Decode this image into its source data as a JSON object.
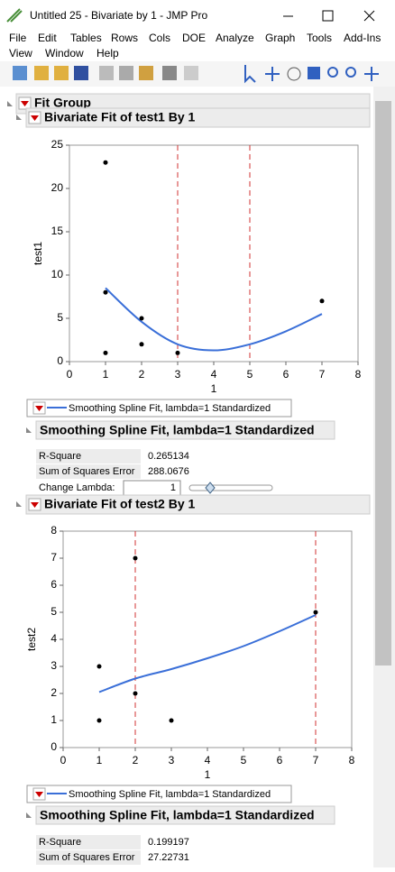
{
  "window": {
    "title": "Untitled 25 - Bivariate by 1 - JMP Pro"
  },
  "menu": {
    "row1": [
      "File",
      "Edit",
      "Tables",
      "Rows",
      "Cols",
      "DOE",
      "Analyze",
      "Graph",
      "Tools",
      "Add-Ins"
    ],
    "row2": [
      "View",
      "Window",
      "Help"
    ]
  },
  "fit_group": {
    "title": "Fit Group"
  },
  "reports": [
    {
      "title": "Bivariate Fit of test1 By 1",
      "chart": {
        "type": "scatter",
        "x_label": "1",
        "y_label": "test1",
        "xlim": [
          0,
          8
        ],
        "ylim": [
          0,
          25
        ],
        "xticks": [
          0,
          1,
          2,
          3,
          4,
          5,
          6,
          7,
          8
        ],
        "yticks": [
          0,
          5,
          10,
          15,
          20,
          25
        ],
        "points": {
          "x": [
            1,
            1,
            1,
            2,
            2,
            3,
            7
          ],
          "y": [
            23,
            8,
            1,
            5,
            2,
            1,
            7
          ]
        },
        "reference_lines": [
          3,
          5
        ],
        "spline": {
          "x": [
            1,
            2,
            3,
            4,
            5,
            6,
            7
          ],
          "y": [
            8.5,
            4.6,
            2.0,
            1.3,
            2.0,
            3.5,
            5.5
          ]
        },
        "legend": "Smoothing Spline Fit, lambda=1 Standardized"
      },
      "fit": {
        "title": "Smoothing Spline Fit, lambda=1 Standardized",
        "rows": [
          [
            "R-Square",
            0.265134
          ],
          [
            "Sum of Squares Error",
            288.0676
          ]
        ],
        "change_lambda": {
          "label": "Change Lambda:",
          "value": 1
        }
      }
    },
    {
      "title": "Bivariate Fit of test2 By 1",
      "chart": {
        "type": "scatter",
        "x_label": "1",
        "y_label": "test2",
        "xlim": [
          0,
          8
        ],
        "ylim": [
          0,
          8
        ],
        "xticks": [
          0,
          1,
          2,
          3,
          4,
          5,
          6,
          7,
          8
        ],
        "yticks": [
          0,
          1,
          2,
          3,
          4,
          5,
          6,
          7,
          8
        ],
        "points": {
          "x": [
            1,
            1,
            2,
            2,
            3,
            7
          ],
          "y": [
            3,
            1,
            7,
            2,
            1,
            5
          ]
        },
        "reference_lines": [
          2,
          7
        ],
        "spline": {
          "x": [
            1,
            2,
            3,
            4,
            5,
            6,
            7
          ],
          "y": [
            2.05,
            2.55,
            2.9,
            3.3,
            3.75,
            4.3,
            4.9
          ]
        },
        "legend": "Smoothing Spline Fit, lambda=1 Standardized"
      },
      "fit": {
        "title": "Smoothing Spline Fit, lambda=1 Standardized",
        "rows": [
          [
            "R-Square",
            0.199197
          ],
          [
            "Sum of Squares Error",
            27.22731
          ]
        ]
      }
    }
  ]
}
